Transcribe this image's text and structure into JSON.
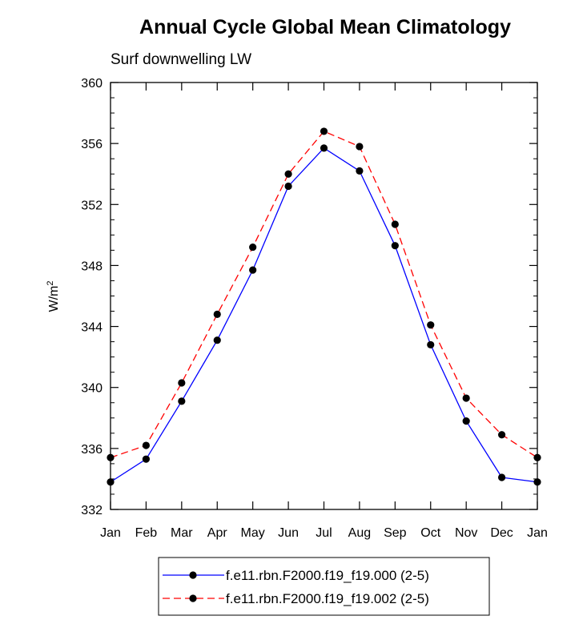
{
  "chart_data": {
    "type": "line",
    "title": "Annual Cycle Global Mean Climatology",
    "subtitle": "Surf downwelling LW",
    "ylabel": "W/m",
    "ylabel_sup": "2",
    "xlabel": "",
    "categories": [
      "Jan",
      "Feb",
      "Mar",
      "Apr",
      "May",
      "Jun",
      "Jul",
      "Aug",
      "Sep",
      "Oct",
      "Nov",
      "Dec",
      "Jan"
    ],
    "ylim": [
      332,
      360
    ],
    "yticks": [
      332,
      336,
      340,
      344,
      348,
      352,
      356,
      360
    ],
    "ytick_labels": [
      "332",
      "336",
      "340",
      "344",
      "348",
      "352",
      "356",
      "360"
    ],
    "series": [
      {
        "name": "f.e11.rbn.F2000.f19_f19.000 (2-5)",
        "color": "#0000ff",
        "dash": "solid",
        "values": [
          333.8,
          335.3,
          339.1,
          343.1,
          347.7,
          353.2,
          355.7,
          354.2,
          349.3,
          342.8,
          337.8,
          334.1,
          333.8
        ]
      },
      {
        "name": "f.e11.rbn.F2000.f19_f19.002 (2-5)",
        "color": "#ff0000",
        "dash": "dashed",
        "values": [
          335.4,
          336.2,
          340.3,
          344.8,
          349.2,
          354.0,
          356.8,
          355.8,
          350.7,
          344.1,
          339.3,
          336.9,
          335.4
        ]
      }
    ],
    "marker_color": "#000000",
    "legend_position": "bottom-center"
  }
}
